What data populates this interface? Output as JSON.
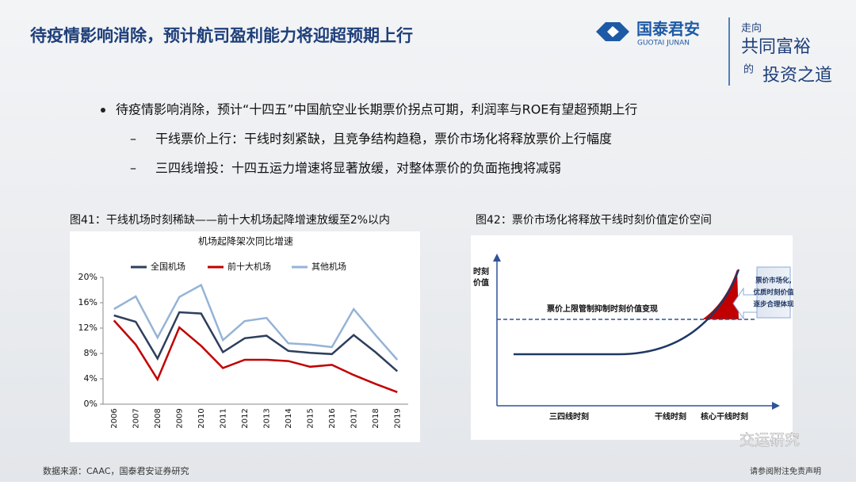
{
  "header": {
    "title": "待疫情影响消除，预计航司盈利能力将迎超预期上行",
    "logo_cn": "国泰君安",
    "logo_en": "GUOTAI JUNAN",
    "slogan": [
      "走向",
      "共同富裕",
      "的",
      "投资之道"
    ]
  },
  "bullets": {
    "main": "待疫情影响消除，预计“十四五”中国航空业长期票价拐点可期，利润率与ROE有望超预期上行",
    "subs": [
      "干线票价上行：干线时刻紧缺，且竞争结构趋稳，票价市场化将释放票价上行幅度",
      "三四线增投：十四五运力增速将显著放缓，对整体票价的负面拖拽将减弱"
    ],
    "dash": "–"
  },
  "figure41": {
    "caption": "图41：干线机场时刻稀缺——前十大机场起降增速放缓至2%以内"
  },
  "figure42": {
    "caption": "图42：票价市场化将释放干线时刻价值定价空间",
    "y_label_1": "时刻",
    "y_label_2": "价值",
    "dashed_label": "票价上限管制抑制时刻价值变现",
    "box": [
      "票价市场化,",
      "优质时刻价值",
      "逐步合理体现"
    ],
    "x_labels": [
      "三四线时刻",
      "干线时刻",
      "核心干线时刻"
    ]
  },
  "chart_data": {
    "type": "line",
    "title": "机场起降架次同比增速",
    "categories": [
      "2006",
      "2007",
      "2008",
      "2009",
      "2010",
      "2011",
      "2012",
      "2013",
      "2014",
      "2015",
      "2016",
      "2017",
      "2018",
      "2019"
    ],
    "series": [
      {
        "name": "全国机场",
        "color": "#2e3f5c",
        "values": [
          14,
          13,
          7.2,
          14.5,
          14.3,
          8.2,
          10.4,
          10.8,
          8.4,
          8.1,
          7.9,
          10.9,
          8.2,
          5.2
        ]
      },
      {
        "name": "前十大机场",
        "color": "#c00000",
        "values": [
          13.2,
          9.4,
          3.9,
          12.1,
          9.2,
          5.7,
          7.0,
          7.0,
          6.8,
          5.9,
          6.2,
          4.6,
          3.2,
          1.9
        ]
      },
      {
        "name": "其他机场",
        "color": "#95b3d7",
        "values": [
          15,
          17,
          10.5,
          16.9,
          18.8,
          10.1,
          13.1,
          13.6,
          9.6,
          9.4,
          9.0,
          15.0,
          10.9,
          7.0
        ]
      }
    ],
    "ylim": [
      0,
      20
    ],
    "yticks": [
      {
        "value": 0,
        "label": "0%"
      },
      {
        "value": 4,
        "label": "4%"
      },
      {
        "value": 8,
        "label": "8%"
      },
      {
        "value": 12,
        "label": "12%"
      },
      {
        "value": 16,
        "label": "16%"
      },
      {
        "value": 20,
        "label": "20%"
      }
    ]
  },
  "footer": {
    "source": "数据来源：CAAC，国泰君安证券研究",
    "watermark": "交运研究",
    "disclaimer": "请参阅附注免责声明"
  }
}
